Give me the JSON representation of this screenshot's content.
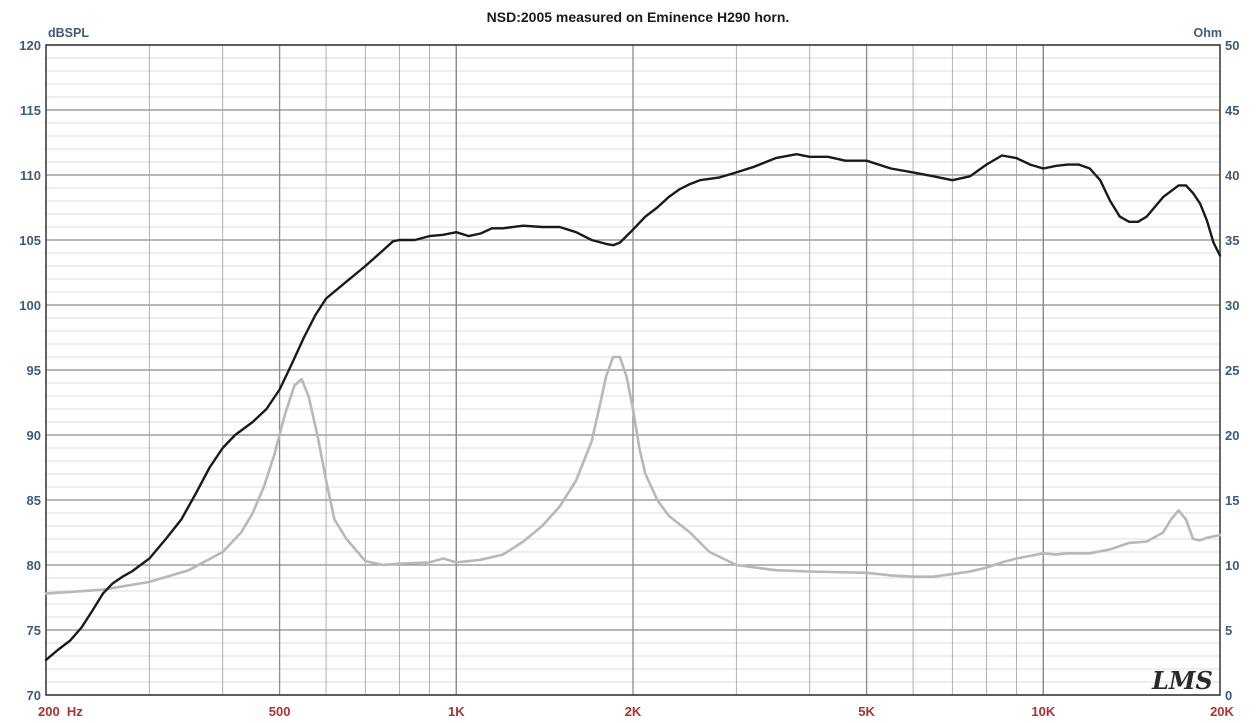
{
  "chart_data": {
    "type": "line",
    "title": "NSD:2005 measured on Eminence H290 horn.",
    "y_left_unit": "dBSPL",
    "y_right_unit": "Ohm",
    "x_scale": "log",
    "xlim": [
      200,
      20000
    ],
    "ylim_left": [
      70,
      120
    ],
    "ylim_right": [
      0,
      50
    ],
    "x_tick_labels": [
      {
        "value": 200,
        "label": "200  Hz"
      },
      {
        "value": 500,
        "label": "500"
      },
      {
        "value": 1000,
        "label": "1K"
      },
      {
        "value": 2000,
        "label": "2K"
      },
      {
        "value": 5000,
        "label": "5K"
      },
      {
        "value": 10000,
        "label": "10K"
      },
      {
        "value": 20000,
        "label": "20K"
      }
    ],
    "y_left_ticks": [
      120,
      115,
      110,
      105,
      100,
      95,
      90,
      85,
      80,
      75,
      70
    ],
    "y_right_ticks": [
      50,
      45,
      40,
      35,
      30,
      25,
      20,
      15,
      10,
      5,
      0
    ],
    "grid": true,
    "watermark": "LMS",
    "colors": {
      "spl": "#1a1a1a",
      "impedance": "#b8b8b8",
      "axis_text": "#3d5a80",
      "x_tick_text": "#b03030",
      "major_grid": "#8c8c8c",
      "minor_grid": "#d0d0d0"
    },
    "series": [
      {
        "axis": "left",
        "points": [
          [
            200,
            72.7
          ],
          [
            210,
            73.5
          ],
          [
            220,
            74.2
          ],
          [
            230,
            75.2
          ],
          [
            240,
            76.5
          ],
          [
            250,
            77.8
          ],
          [
            260,
            78.6
          ],
          [
            270,
            79.1
          ],
          [
            280,
            79.5
          ],
          [
            300,
            80.5
          ],
          [
            320,
            82.0
          ],
          [
            340,
            83.5
          ],
          [
            360,
            85.5
          ],
          [
            380,
            87.5
          ],
          [
            400,
            89.0
          ],
          [
            420,
            90.0
          ],
          [
            450,
            91.0
          ],
          [
            475,
            92.0
          ],
          [
            500,
            93.5
          ],
          [
            525,
            95.5
          ],
          [
            550,
            97.5
          ],
          [
            575,
            99.2
          ],
          [
            600,
            100.5
          ],
          [
            650,
            101.8
          ],
          [
            700,
            103.0
          ],
          [
            750,
            104.2
          ],
          [
            780,
            104.9
          ],
          [
            800,
            105.0
          ],
          [
            850,
            105.0
          ],
          [
            900,
            105.3
          ],
          [
            950,
            105.4
          ],
          [
            1000,
            105.6
          ],
          [
            1050,
            105.3
          ],
          [
            1100,
            105.5
          ],
          [
            1150,
            105.9
          ],
          [
            1200,
            105.9
          ],
          [
            1300,
            106.1
          ],
          [
            1400,
            106.0
          ],
          [
            1500,
            106.0
          ],
          [
            1600,
            105.6
          ],
          [
            1700,
            105.0
          ],
          [
            1800,
            104.7
          ],
          [
            1850,
            104.6
          ],
          [
            1900,
            104.8
          ],
          [
            2000,
            105.8
          ],
          [
            2100,
            106.8
          ],
          [
            2200,
            107.5
          ],
          [
            2300,
            108.3
          ],
          [
            2400,
            108.9
          ],
          [
            2500,
            109.3
          ],
          [
            2600,
            109.6
          ],
          [
            2800,
            109.8
          ],
          [
            3000,
            110.2
          ],
          [
            3200,
            110.6
          ],
          [
            3500,
            111.3
          ],
          [
            3800,
            111.6
          ],
          [
            4000,
            111.4
          ],
          [
            4300,
            111.4
          ],
          [
            4600,
            111.1
          ],
          [
            5000,
            111.1
          ],
          [
            5500,
            110.5
          ],
          [
            6000,
            110.2
          ],
          [
            6500,
            109.9
          ],
          [
            7000,
            109.6
          ],
          [
            7500,
            109.9
          ],
          [
            8000,
            110.8
          ],
          [
            8500,
            111.5
          ],
          [
            9000,
            111.3
          ],
          [
            9500,
            110.8
          ],
          [
            10000,
            110.5
          ],
          [
            10500,
            110.7
          ],
          [
            11000,
            110.8
          ],
          [
            11500,
            110.8
          ],
          [
            12000,
            110.5
          ],
          [
            12500,
            109.6
          ],
          [
            13000,
            108.0
          ],
          [
            13500,
            106.8
          ],
          [
            14000,
            106.4
          ],
          [
            14500,
            106.4
          ],
          [
            15000,
            106.8
          ],
          [
            16000,
            108.3
          ],
          [
            17000,
            109.2
          ],
          [
            17500,
            109.2
          ],
          [
            18000,
            108.6
          ],
          [
            18500,
            107.8
          ],
          [
            19000,
            106.5
          ],
          [
            19500,
            104.8
          ],
          [
            20000,
            103.8
          ]
        ]
      },
      {
        "axis": "right",
        "points": [
          [
            200,
            7.8
          ],
          [
            250,
            8.1
          ],
          [
            300,
            8.7
          ],
          [
            350,
            9.6
          ],
          [
            400,
            11.0
          ],
          [
            430,
            12.5
          ],
          [
            450,
            14.0
          ],
          [
            470,
            16.0
          ],
          [
            490,
            18.5
          ],
          [
            510,
            21.5
          ],
          [
            530,
            23.8
          ],
          [
            545,
            24.3
          ],
          [
            560,
            23.0
          ],
          [
            580,
            20.0
          ],
          [
            600,
            16.5
          ],
          [
            620,
            13.5
          ],
          [
            650,
            12.0
          ],
          [
            700,
            10.3
          ],
          [
            750,
            10.0
          ],
          [
            800,
            10.1
          ],
          [
            900,
            10.2
          ],
          [
            950,
            10.5
          ],
          [
            1000,
            10.2
          ],
          [
            1100,
            10.4
          ],
          [
            1200,
            10.8
          ],
          [
            1300,
            11.8
          ],
          [
            1400,
            13.0
          ],
          [
            1500,
            14.5
          ],
          [
            1600,
            16.5
          ],
          [
            1700,
            19.5
          ],
          [
            1750,
            22.0
          ],
          [
            1800,
            24.5
          ],
          [
            1850,
            26.0
          ],
          [
            1900,
            26.0
          ],
          [
            1950,
            24.5
          ],
          [
            2000,
            22.0
          ],
          [
            2050,
            19.0
          ],
          [
            2100,
            17.0
          ],
          [
            2200,
            15.0
          ],
          [
            2300,
            13.8
          ],
          [
            2500,
            12.5
          ],
          [
            2700,
            11.0
          ],
          [
            3000,
            10.0
          ],
          [
            3500,
            9.6
          ],
          [
            4000,
            9.5
          ],
          [
            5000,
            9.4
          ],
          [
            5500,
            9.2
          ],
          [
            6000,
            9.1
          ],
          [
            6500,
            9.1
          ],
          [
            7000,
            9.3
          ],
          [
            7500,
            9.5
          ],
          [
            8000,
            9.8
          ],
          [
            8500,
            10.2
          ],
          [
            9000,
            10.5
          ],
          [
            9500,
            10.7
          ],
          [
            10000,
            10.9
          ],
          [
            10500,
            10.8
          ],
          [
            11000,
            10.9
          ],
          [
            12000,
            10.9
          ],
          [
            13000,
            11.2
          ],
          [
            14000,
            11.7
          ],
          [
            15000,
            11.8
          ],
          [
            16000,
            12.5
          ],
          [
            16500,
            13.5
          ],
          [
            17000,
            14.2
          ],
          [
            17500,
            13.5
          ],
          [
            18000,
            12.0
          ],
          [
            18500,
            11.9
          ],
          [
            19000,
            12.1
          ],
          [
            20000,
            12.3
          ]
        ]
      }
    ]
  }
}
